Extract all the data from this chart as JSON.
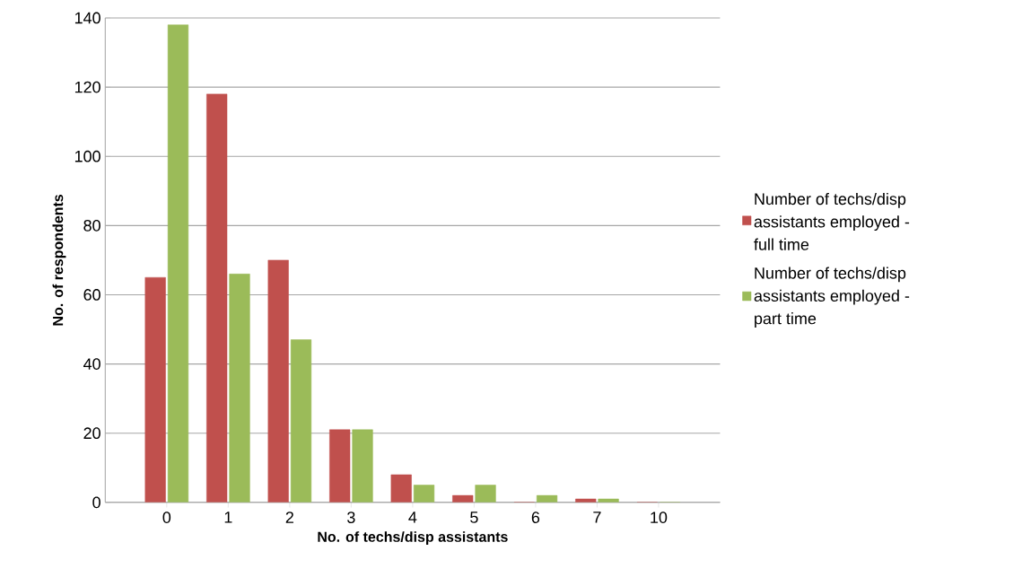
{
  "chart_data": {
    "type": "bar",
    "xlabel": "No. of techs/disp assistants",
    "ylabel": "No. of respondents",
    "categories": [
      "0",
      "1",
      "2",
      "3",
      "4",
      "5",
      "6",
      "7",
      "10"
    ],
    "series": [
      {
        "name": "Number of techs/disp assistants employed - full time",
        "color": "#c0504d",
        "values": [
          65,
          118,
          70,
          21,
          8,
          2,
          0,
          1,
          0
        ]
      },
      {
        "name": "Number of techs/disp assistants employed - part time",
        "color": "#9bbb59",
        "values": [
          138,
          66,
          47,
          21,
          5,
          5,
          2,
          1,
          0
        ]
      }
    ],
    "ylim": [
      0,
      140
    ],
    "yticks": [
      0,
      20,
      40,
      60,
      80,
      100,
      120,
      140
    ],
    "grid": "y",
    "legend": "right"
  }
}
